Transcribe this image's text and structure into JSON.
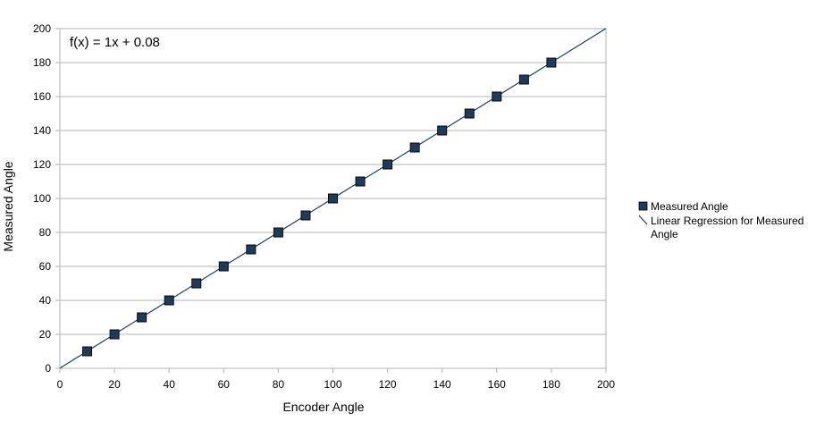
{
  "chart_data": {
    "type": "scatter",
    "xlabel": "Encoder Angle",
    "ylabel": "Measured Angle",
    "xlim": [
      0,
      200
    ],
    "ylim": [
      0,
      200
    ],
    "x_ticks": [
      0,
      20,
      40,
      60,
      80,
      100,
      120,
      140,
      160,
      180,
      200
    ],
    "y_ticks": [
      0,
      20,
      40,
      60,
      80,
      100,
      120,
      140,
      160,
      180,
      200
    ],
    "grid": "horizontal",
    "legend_position": "right",
    "series": [
      {
        "name": "Measured Angle",
        "kind": "scatter",
        "marker": "square",
        "color": "#1f3b5c",
        "x": [
          10,
          20,
          30,
          40,
          50,
          60,
          70,
          80,
          90,
          100,
          110,
          120,
          130,
          140,
          150,
          160,
          170,
          180
        ],
        "y": [
          10,
          20,
          30,
          40,
          50,
          60,
          70,
          80,
          90,
          100,
          110,
          120,
          130,
          140,
          150,
          160,
          170,
          180
        ]
      },
      {
        "name": "Linear Regression for Measured Angle",
        "kind": "line",
        "color": "#1f3b5c",
        "slope": 1,
        "intercept": 0.08
      }
    ],
    "annotations": [
      "f(x) = 1x + 0.08"
    ]
  },
  "legend": {
    "items": [
      {
        "label": "Measured Angle"
      },
      {
        "label_line1": "Linear Regression for Measured",
        "label_line2": "Angle"
      }
    ]
  }
}
